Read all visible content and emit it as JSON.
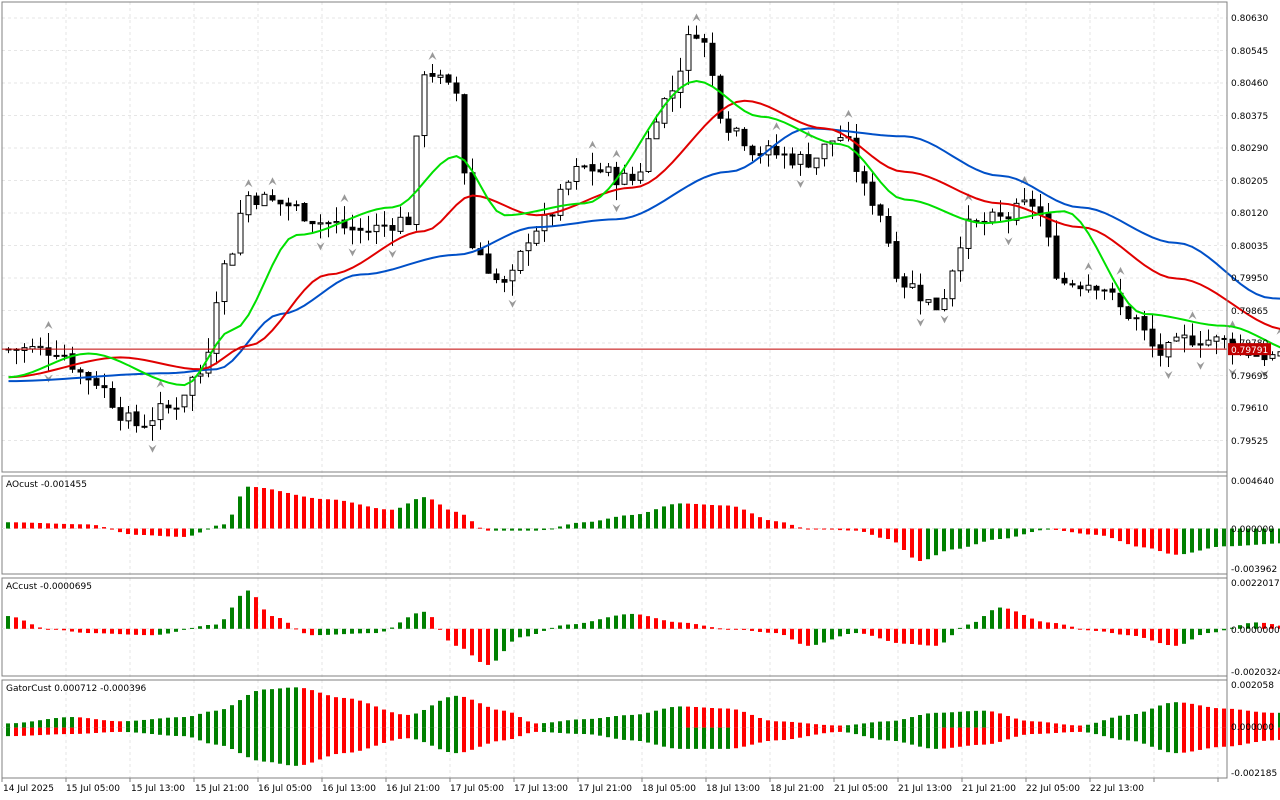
{
  "colors": {
    "bull_body": "#ffffff",
    "bear_body": "#000000",
    "wick": "#000000",
    "alligator_lips": "#00e000",
    "alligator_teeth": "#e00000",
    "alligator_jaw": "#0050c8",
    "price_line": "#c00000",
    "hist_green": "#008000",
    "hist_red": "#ff0000",
    "fractal": "#999999",
    "grid": "#e6e6e6",
    "frame": "#808080"
  },
  "price_panel": {
    "current_price": "0.79791",
    "ticks": [
      "0.80630",
      "0.80545",
      "0.80460",
      "0.80375",
      "0.80290",
      "0.80205",
      "0.80120",
      "0.80035",
      "0.79950",
      "0.79865",
      "0.79780",
      "0.79695",
      "0.79610",
      "0.79525"
    ]
  },
  "ao_panel": {
    "label": "AOcust -0.001455",
    "ticks": [
      "0.004640",
      "0.000000",
      "-0.003962"
    ]
  },
  "ac_panel": {
    "label": "ACcust -0.0000695",
    "ticks": [
      "0.0022017",
      "0.0000000",
      "-0.0020324"
    ]
  },
  "gator_panel": {
    "label": "GatorCust 0.000712 -0.000396",
    "ticks": [
      "0.002058",
      "0.000000",
      "-0.002185"
    ]
  },
  "time_axis": {
    "labels": [
      "14 Jul 2025",
      "15 Jul 05:00",
      "15 Jul 13:00",
      "15 Jul 21:00",
      "16 Jul 05:00",
      "16 Jul 13:00",
      "16 Jul 21:00",
      "17 Jul 05:00",
      "17 Jul 13:00",
      "17 Jul 21:00",
      "18 Jul 05:00",
      "18 Jul 13:00",
      "18 Jul 21:00",
      "21 Jul 05:00",
      "21 Jul 13:00",
      "21 Jul 21:00",
      "22 Jul 05:00",
      "22 Jul 13:00"
    ]
  },
  "chart_data": [
    {
      "type": "candlestick",
      "instrument_note": "",
      "current_price": 0.79791,
      "ylim": [
        0.7949,
        0.8066
      ],
      "x_tick_labels": [
        "14 Jul 2025",
        "15 Jul 05:00",
        "15 Jul 13:00",
        "15 Jul 21:00",
        "16 Jul 05:00",
        "16 Jul 13:00",
        "16 Jul 21:00",
        "17 Jul 05:00",
        "17 Jul 13:00",
        "17 Jul 21:00",
        "18 Jul 05:00",
        "18 Jul 13:00",
        "18 Jul 21:00",
        "21 Jul 05:00",
        "21 Jul 13:00",
        "21 Jul 21:00",
        "22 Jul 05:00",
        "22 Jul 13:00"
      ],
      "close_path": [
        [
          0,
          0.79791
        ],
        [
          6,
          0.7979
        ],
        [
          10,
          0.7972
        ],
        [
          16,
          0.796
        ],
        [
          20,
          0.7964
        ],
        [
          24,
          0.7973
        ],
        [
          27,
          0.8
        ],
        [
          30,
          0.8018
        ],
        [
          34,
          0.8016
        ],
        [
          40,
          0.8011
        ],
        [
          44,
          0.8009
        ],
        [
          50,
          0.8012
        ],
        [
          52,
          0.805
        ],
        [
          56,
          0.8044
        ],
        [
          58,
          0.8005
        ],
        [
          62,
          0.7995
        ],
        [
          66,
          0.801
        ],
        [
          72,
          0.8025
        ],
        [
          78,
          0.8022
        ],
        [
          82,
          0.8042
        ],
        [
          86,
          0.806
        ],
        [
          90,
          0.8036
        ],
        [
          94,
          0.8029
        ],
        [
          100,
          0.8027
        ],
        [
          104,
          0.8033
        ],
        [
          108,
          0.8017
        ],
        [
          112,
          0.7996
        ],
        [
          116,
          0.799
        ],
        [
          120,
          0.801
        ],
        [
          124,
          0.8012
        ],
        [
          128,
          0.8016
        ],
        [
          132,
          0.7996
        ],
        [
          136,
          0.7996
        ],
        [
          140,
          0.7988
        ],
        [
          144,
          0.7978
        ],
        [
          148,
          0.7982
        ],
        [
          152,
          0.7981
        ],
        [
          156,
          0.7978
        ],
        [
          160,
          0.7976
        ],
        [
          163,
          0.798
        ]
      ],
      "alligator": {
        "jaw": [
          [
            0,
            0.7971
          ],
          [
            20,
            0.7973
          ],
          [
            26,
            0.7974
          ],
          [
            34,
            0.7988
          ],
          [
            44,
            0.7998
          ],
          [
            56,
            0.8003
          ],
          [
            66,
            0.801
          ],
          [
            76,
            0.8012
          ],
          [
            90,
            0.8024
          ],
          [
            100,
            0.8035
          ],
          [
            112,
            0.8033
          ],
          [
            124,
            0.8023
          ],
          [
            134,
            0.8015
          ],
          [
            146,
            0.8006
          ],
          [
            158,
            0.7992
          ],
          [
            170,
            0.7987
          ]
        ],
        "teeth": [
          [
            0,
            0.7972
          ],
          [
            14,
            0.7977
          ],
          [
            24,
            0.7974
          ],
          [
            30,
            0.798
          ],
          [
            40,
            0.7998
          ],
          [
            52,
            0.8009
          ],
          [
            58,
            0.8018
          ],
          [
            66,
            0.8013
          ],
          [
            78,
            0.802
          ],
          [
            92,
            0.8042
          ],
          [
            102,
            0.8035
          ],
          [
            112,
            0.8024
          ],
          [
            124,
            0.8016
          ],
          [
            134,
            0.801
          ],
          [
            146,
            0.7997
          ],
          [
            160,
            0.7984
          ],
          [
            166,
            0.798
          ]
        ],
        "lips": [
          [
            0,
            0.7972
          ],
          [
            10,
            0.7978
          ],
          [
            22,
            0.797
          ],
          [
            28,
            0.7984
          ],
          [
            36,
            0.8008
          ],
          [
            48,
            0.8015
          ],
          [
            56,
            0.8028
          ],
          [
            62,
            0.8013
          ],
          [
            72,
            0.8016
          ],
          [
            86,
            0.8047
          ],
          [
            94,
            0.8038
          ],
          [
            104,
            0.8031
          ],
          [
            112,
            0.8017
          ],
          [
            122,
            0.8011
          ],
          [
            132,
            0.8014
          ],
          [
            142,
            0.7988
          ],
          [
            152,
            0.7985
          ],
          [
            162,
            0.7978
          ]
        ]
      }
    },
    {
      "type": "bar",
      "title": "AOcust",
      "current_value": -0.001455,
      "ylim": [
        -0.003962,
        0.00464
      ],
      "trend_path": [
        [
          0,
          0.0006
        ],
        [
          10,
          0.0004
        ],
        [
          16,
          -0.0006
        ],
        [
          22,
          -0.0008
        ],
        [
          27,
          0.0004
        ],
        [
          30,
          0.004
        ],
        [
          40,
          0.0028
        ],
        [
          48,
          0.0018
        ],
        [
          52,
          0.003
        ],
        [
          56,
          0.0016
        ],
        [
          60,
          -0.0002
        ],
        [
          66,
          -0.0002
        ],
        [
          72,
          0.0006
        ],
        [
          78,
          0.0013
        ],
        [
          84,
          0.0024
        ],
        [
          90,
          0.0022
        ],
        [
          96,
          0.0007
        ],
        [
          100,
          0.0
        ],
        [
          106,
          -0.0002
        ],
        [
          110,
          -0.001
        ],
        [
          114,
          -0.0031
        ],
        [
          118,
          -0.002
        ],
        [
          124,
          -0.001
        ],
        [
          130,
          -0.0001
        ],
        [
          136,
          -0.0006
        ],
        [
          142,
          -0.0018
        ],
        [
          146,
          -0.0025
        ],
        [
          152,
          -0.0017
        ],
        [
          160,
          -0.0014
        ],
        [
          165,
          -0.0015
        ]
      ]
    },
    {
      "type": "bar",
      "title": "ACcust",
      "current_value": -6.95e-05,
      "ylim": [
        -0.0020324,
        0.0022017
      ],
      "trend_path": [
        [
          0,
          0.0006
        ],
        [
          5,
          0.0
        ],
        [
          10,
          -0.0002
        ],
        [
          18,
          -0.0003
        ],
        [
          26,
          0.0002
        ],
        [
          30,
          0.0018
        ],
        [
          33,
          0.0006
        ],
        [
          38,
          -0.0003
        ],
        [
          46,
          -0.0002
        ],
        [
          52,
          0.0008
        ],
        [
          56,
          -0.0008
        ],
        [
          60,
          -0.0017
        ],
        [
          64,
          -0.0004
        ],
        [
          70,
          0.0002
        ],
        [
          78,
          0.0007
        ],
        [
          84,
          0.0003
        ],
        [
          90,
          0.0
        ],
        [
          96,
          -0.0002
        ],
        [
          100,
          -0.0008
        ],
        [
          106,
          -0.0002
        ],
        [
          112,
          -0.0007
        ],
        [
          116,
          -0.0008
        ],
        [
          120,
          0.0002
        ],
        [
          124,
          0.001
        ],
        [
          130,
          0.0003
        ],
        [
          136,
          -0.0001
        ],
        [
          140,
          -0.0003
        ],
        [
          146,
          -0.0008
        ],
        [
          150,
          -0.0002
        ],
        [
          156,
          0.0003
        ],
        [
          162,
          0.0
        ],
        [
          166,
          -0.0001
        ]
      ]
    },
    {
      "type": "bar",
      "title": "GatorCust",
      "current_values": [
        0.000712,
        -0.000396
      ],
      "ylim": [
        -0.002185,
        0.002058
      ],
      "upper_path": [
        [
          0,
          0.0002
        ],
        [
          8,
          0.0005
        ],
        [
          14,
          0.0003
        ],
        [
          22,
          0.0005
        ],
        [
          26,
          0.0008
        ],
        [
          32,
          0.0018
        ],
        [
          36,
          0.0019
        ],
        [
          42,
          0.0014
        ],
        [
          50,
          0.0006
        ],
        [
          56,
          0.0015
        ],
        [
          62,
          0.0008
        ],
        [
          66,
          0.0002
        ],
        [
          72,
          0.0004
        ],
        [
          78,
          0.0006
        ],
        [
          84,
          0.001
        ],
        [
          90,
          0.0009
        ],
        [
          96,
          0.0003
        ],
        [
          104,
          0.0001
        ],
        [
          110,
          0.0003
        ],
        [
          116,
          0.0007
        ],
        [
          122,
          0.0008
        ],
        [
          128,
          0.0003
        ],
        [
          134,
          0.0001
        ],
        [
          140,
          0.0006
        ],
        [
          146,
          0.0012
        ],
        [
          152,
          0.0009
        ],
        [
          158,
          0.0007
        ],
        [
          168,
          0.0007
        ]
      ],
      "lower_path": [
        [
          0,
          -0.0004
        ],
        [
          8,
          -0.0003
        ],
        [
          14,
          -0.0002
        ],
        [
          22,
          -0.0004
        ],
        [
          26,
          -0.0008
        ],
        [
          32,
          -0.0016
        ],
        [
          36,
          -0.0018
        ],
        [
          42,
          -0.0012
        ],
        [
          50,
          -0.0005
        ],
        [
          56,
          -0.0012
        ],
        [
          62,
          -0.0006
        ],
        [
          66,
          -0.0002
        ],
        [
          72,
          -0.0003
        ],
        [
          78,
          -0.0006
        ],
        [
          84,
          -0.001
        ],
        [
          90,
          -0.001
        ],
        [
          96,
          -0.0006
        ],
        [
          104,
          -0.0002
        ],
        [
          110,
          -0.0006
        ],
        [
          116,
          -0.001
        ],
        [
          122,
          -0.0008
        ],
        [
          128,
          -0.0003
        ],
        [
          134,
          -0.0002
        ],
        [
          140,
          -0.0006
        ],
        [
          146,
          -0.0012
        ],
        [
          152,
          -0.0009
        ],
        [
          158,
          -0.0006
        ],
        [
          163,
          -0.0004
        ]
      ]
    }
  ]
}
